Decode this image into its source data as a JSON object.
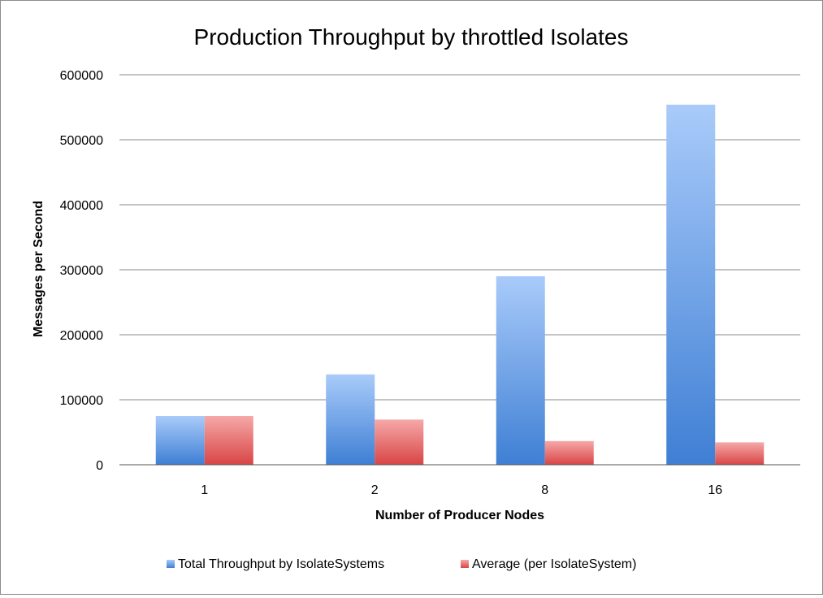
{
  "chart_data": {
    "type": "bar",
    "title": "Production Throughput by throttled Isolates",
    "xlabel": "Number of Producer Nodes",
    "ylabel": "Messages per Second",
    "categories": [
      "1",
      "2",
      "8",
      "16"
    ],
    "series": [
      {
        "name": "Total Throughput by IsolateSystems",
        "values": [
          75000,
          139000,
          290000,
          554000
        ]
      },
      {
        "name": "Average (per IsolateSystem)",
        "values": [
          75000,
          69500,
          36500,
          34500
        ]
      }
    ],
    "ylim": [
      0,
      600000
    ],
    "yticks": [
      "0",
      "100000",
      "200000",
      "300000",
      "400000",
      "500000",
      "600000"
    ],
    "grid": true,
    "legend_position": "bottom"
  },
  "colors": {
    "series_0_top": "#a9cbfa",
    "series_0_bottom": "#3f7fd4",
    "series_1_top": "#f6a8a8",
    "series_1_bottom": "#d84545",
    "gridline": "#8a8a8a",
    "axis": "#555555"
  }
}
